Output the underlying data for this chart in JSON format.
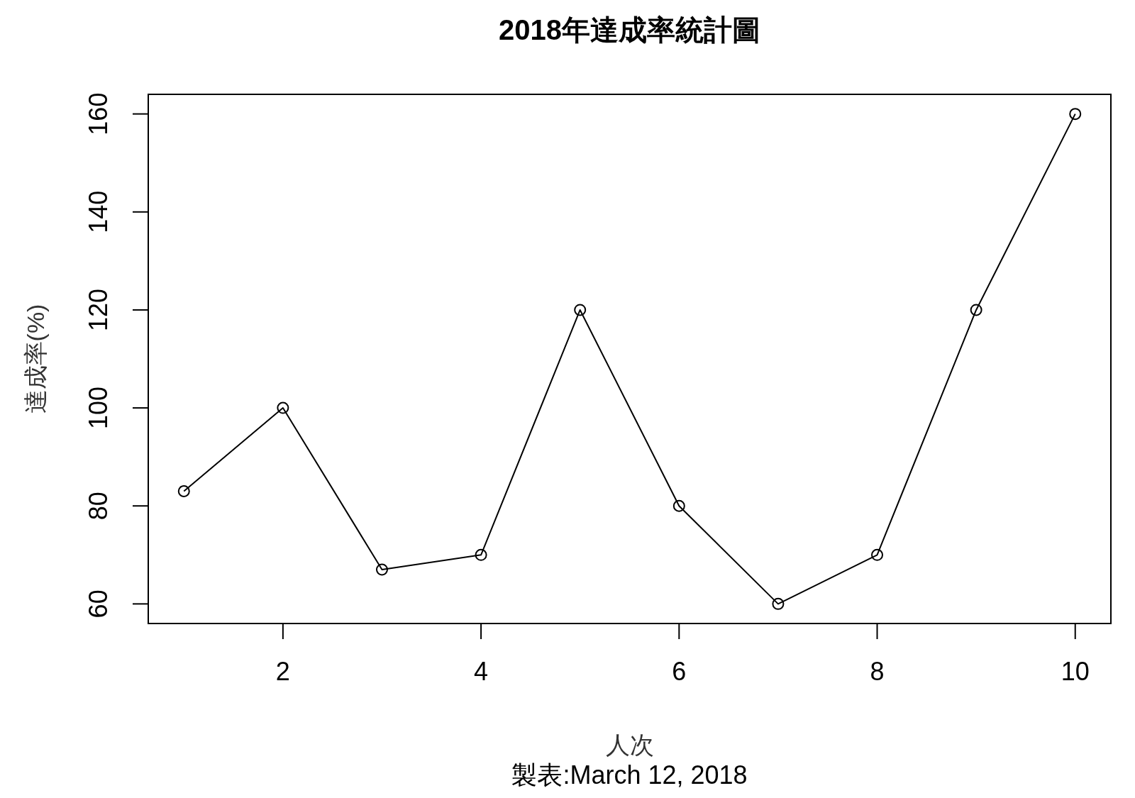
{
  "chart_data": {
    "type": "line",
    "title": "2018年達成率統計圖",
    "xlabel": "人次",
    "ylabel": "達成率(%)",
    "annotations": [
      "製表:March 12, 2018"
    ],
    "x": [
      1,
      2,
      3,
      4,
      5,
      6,
      7,
      8,
      9,
      10
    ],
    "series": [
      {
        "color": "#000000",
        "values": [
          83,
          100,
          67,
          70,
          120,
          80,
          60,
          70,
          120,
          160
        ]
      }
    ],
    "xlim": [
      0.64,
      10.36
    ],
    "xticks": [
      2,
      4,
      6,
      8,
      10
    ],
    "ylim": [
      56,
      164
    ],
    "yticks": [
      60,
      80,
      100,
      120,
      140,
      160
    ],
    "marker": "circle",
    "line_style": "solid"
  }
}
